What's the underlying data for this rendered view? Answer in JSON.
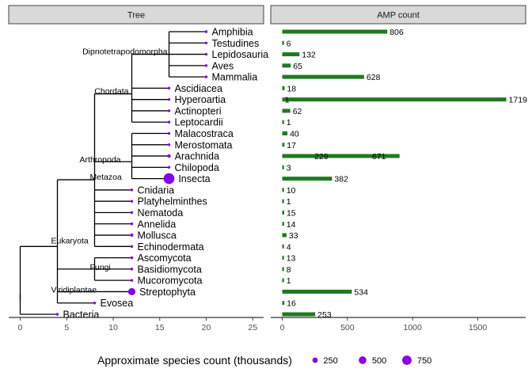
{
  "chart_data": [
    {
      "panel": "Tree",
      "type": "tree",
      "xlim": [
        -1,
        26
      ],
      "xticks": [
        0,
        5,
        10,
        15,
        20,
        25
      ],
      "point_color": "#8800ee",
      "nodes": [
        {
          "id": "root",
          "x": 0,
          "y": 1.5,
          "parent": null,
          "label": ""
        },
        {
          "id": "eukaryota",
          "x": 4,
          "y": 6,
          "parent": "root",
          "label": "Eukaryota"
        },
        {
          "id": "metazoa",
          "x": 8,
          "y": 11.9,
          "parent": "eukaryota",
          "label": "Metazoa"
        },
        {
          "id": "chordata",
          "x": 12,
          "y": 19.5,
          "parent": "metazoa",
          "label": "Chordata"
        },
        {
          "id": "dipno",
          "x": 16,
          "y": 23,
          "parent": "chordata",
          "label": "Dipnotetrapodomorpha"
        },
        {
          "id": "arthropoda",
          "x": 12,
          "y": 13.5,
          "parent": "metazoa",
          "label": "Arthropoda"
        },
        {
          "id": "fungi",
          "x": 8,
          "y": 4,
          "parent": "eukaryota",
          "label": "Fungi"
        },
        {
          "id": "viridiplantae",
          "x": 4,
          "y": 2,
          "parent": "eukaryota",
          "label": "Viridiplantae"
        },
        {
          "id": "n_amphibia",
          "x": 20,
          "y": 25,
          "parent": "dipno",
          "label": "Amphibia",
          "size": 8
        },
        {
          "id": "n_testudines",
          "x": 20,
          "y": 24,
          "parent": "dipno",
          "label": "Testudines",
          "size": 0.3
        },
        {
          "id": "n_lepidosauria",
          "x": 20,
          "y": 23,
          "parent": "dipno",
          "label": "Lepidosauria",
          "size": 10
        },
        {
          "id": "n_aves",
          "x": 20,
          "y": 22,
          "parent": "dipno",
          "label": "Aves",
          "size": 10
        },
        {
          "id": "n_mammalia",
          "x": 20,
          "y": 21,
          "parent": "dipno",
          "label": "Mammalia",
          "size": 6
        },
        {
          "id": "n_ascidiacea",
          "x": 16,
          "y": 20,
          "parent": "chordata",
          "label": "Ascidiacea",
          "size": 3
        },
        {
          "id": "n_hyperoartia",
          "x": 16,
          "y": 19,
          "parent": "chordata",
          "label": "Hyperoartia",
          "size": 0.1
        },
        {
          "id": "n_actinopteri",
          "x": 16,
          "y": 18,
          "parent": "chordata",
          "label": "Actinopteri",
          "size": 34
        },
        {
          "id": "n_leptocardii",
          "x": 16,
          "y": 17,
          "parent": "chordata",
          "label": "Leptocardii",
          "size": 0.03
        },
        {
          "id": "n_malacostraca",
          "x": 16,
          "y": 16,
          "parent": "arthropoda",
          "label": "Malacostraca",
          "size": 40
        },
        {
          "id": "n_merostomata",
          "x": 16,
          "y": 15,
          "parent": "arthropoda",
          "label": "Merostomata",
          "size": 0.004
        },
        {
          "id": "n_arachnida",
          "x": 16,
          "y": 14,
          "parent": "arthropoda",
          "label": "Arachnida",
          "size": 100
        },
        {
          "id": "n_chilopoda",
          "x": 16,
          "y": 13,
          "parent": "arthropoda",
          "label": "Chilopoda",
          "size": 3
        },
        {
          "id": "n_insecta",
          "x": 16,
          "y": 12,
          "parent": "arthropoda",
          "label": "Insecta",
          "size": 1000
        },
        {
          "id": "n_cnidaria",
          "x": 12,
          "y": 11,
          "parent": "metazoa",
          "label": "Cnidaria",
          "size": 11
        },
        {
          "id": "n_platyhelminthes",
          "x": 12,
          "y": 10,
          "parent": "metazoa",
          "label": "Platyhelminthes",
          "size": 20
        },
        {
          "id": "n_nematoda",
          "x": 12,
          "y": 9,
          "parent": "metazoa",
          "label": "Nematoda",
          "size": 25
        },
        {
          "id": "n_annelida",
          "x": 12,
          "y": 8,
          "parent": "metazoa",
          "label": "Annelida",
          "size": 22
        },
        {
          "id": "n_mollusca",
          "x": 12,
          "y": 7,
          "parent": "metazoa",
          "label": "Mollusca",
          "size": 85
        },
        {
          "id": "n_echinodermata",
          "x": 12,
          "y": 6,
          "parent": "metazoa",
          "label": "Echinodermata",
          "size": 7
        },
        {
          "id": "n_ascomycota",
          "x": 12,
          "y": 5,
          "parent": "fungi",
          "label": "Ascomycota",
          "size": 64
        },
        {
          "id": "n_basidiomycota",
          "x": 12,
          "y": 4,
          "parent": "fungi",
          "label": "Basidiomycota",
          "size": 31
        },
        {
          "id": "n_mucoromycota",
          "x": 12,
          "y": 3,
          "parent": "fungi",
          "label": "Mucoromycota",
          "size": 1
        },
        {
          "id": "n_streptophyta",
          "x": 12,
          "y": 2,
          "parent": "viridiplantae",
          "label": "Streptophyta",
          "size": 450
        },
        {
          "id": "n_evosea",
          "x": 8,
          "y": 1,
          "parent": "eukaryota",
          "label": "Evosea",
          "size": 2
        },
        {
          "id": "n_bacteria",
          "x": 4,
          "y": 0,
          "parent": "root",
          "label": "Bacteria",
          "size": 10
        }
      ]
    },
    {
      "panel": "AMP count",
      "type": "bar",
      "orientation": "horizontal",
      "xlim": [
        0,
        1900
      ],
      "xticks": [
        0,
        500,
        1000,
        1500
      ],
      "bar_color": "#1f7a1f",
      "categories": [
        "Amphibia",
        "Testudines",
        "Lepidosauria",
        "Aves",
        "Mammalia",
        "Ascidiacea",
        "Hyperoartia",
        "Actinopteri",
        "Leptocardii",
        "Malacostraca",
        "Merostomata",
        "Arachnida",
        "Chilopoda",
        "Insecta",
        "Cnidaria",
        "Platyhelminthes",
        "Nematoda",
        "Annelida",
        "Mollusca",
        "Echinodermata",
        "Ascomycota",
        "Basidiomycota",
        "Mucoromycota",
        "Streptophyta",
        "Evosea",
        "Bacteria"
      ],
      "y": [
        25,
        24,
        23,
        22,
        21,
        20,
        19,
        18,
        17,
        16,
        15,
        14,
        13,
        12,
        11,
        10,
        9,
        8,
        7,
        6,
        5,
        4,
        3,
        2,
        1,
        0
      ],
      "values": [
        806,
        6,
        132,
        65,
        628,
        18,
        1719,
        62,
        1,
        40,
        17,
        900,
        3,
        382,
        10,
        1,
        15,
        14,
        33,
        4,
        13,
        8,
        1,
        534,
        16,
        253
      ],
      "labels": [
        "806",
        "6",
        "132",
        "65",
        "628",
        "18",
        "1719",
        "62",
        "1",
        "40",
        "17",
        "",
        "3",
        "382",
        "10",
        "1",
        "15",
        "14",
        "33",
        "4",
        "13",
        "8",
        "1",
        "534",
        "16",
        "253"
      ],
      "extra_labels": [
        {
          "text": "229",
          "value": 229,
          "y": 14
        },
        {
          "text": "671",
          "value": 671,
          "y": 14
        },
        {
          "text": "1",
          "value": 1,
          "y": 19
        }
      ]
    }
  ],
  "panels": {
    "tree_title": "Tree",
    "amp_title": "AMP count"
  },
  "legend": {
    "title": "Approximate species count (thousands)",
    "items": [
      {
        "label": "250",
        "value": 250
      },
      {
        "label": "500",
        "value": 500
      },
      {
        "label": "750",
        "value": 750
      }
    ]
  }
}
